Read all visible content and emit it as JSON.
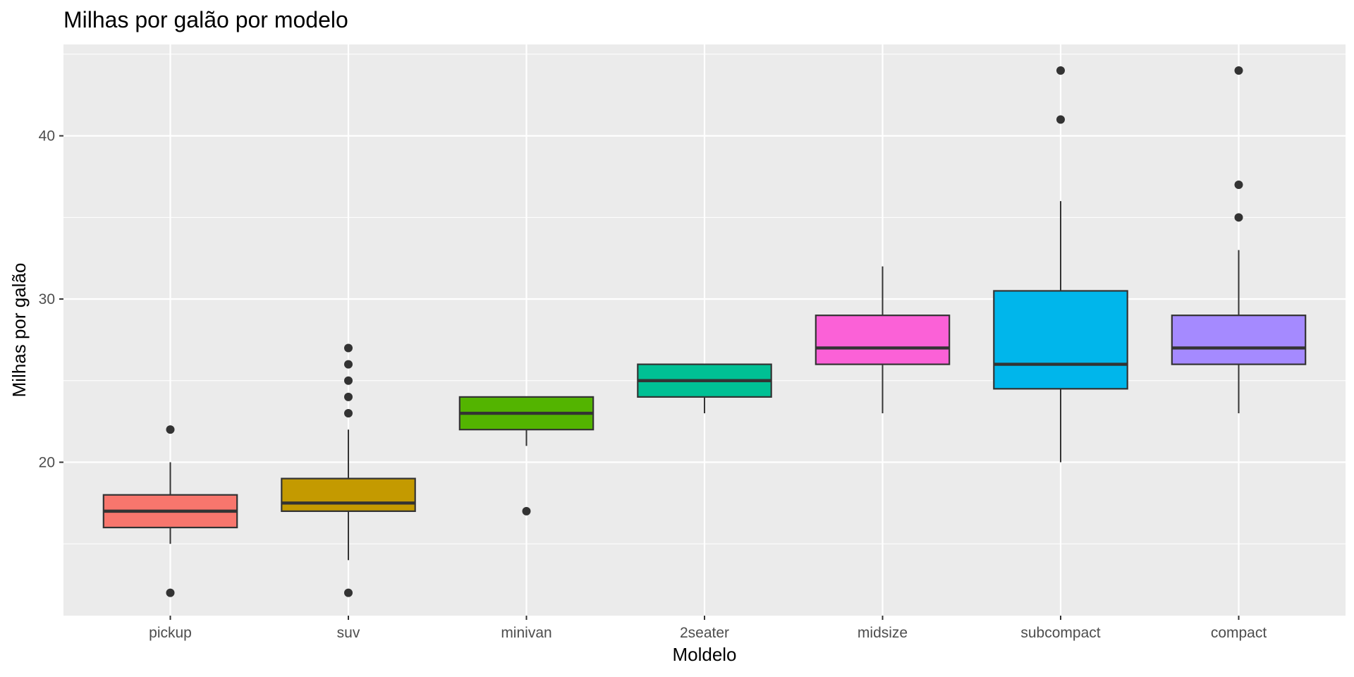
{
  "chart_data": {
    "type": "boxplot",
    "title": "Milhas por galão por modelo",
    "xlabel": "Moldelo",
    "ylabel": "Milhas por galão",
    "ylim": [
      10.6,
      45.6
    ],
    "yticks": [
      20,
      30,
      40
    ],
    "grid": true,
    "legend": "none",
    "categories": [
      "pickup",
      "suv",
      "minivan",
      "2seater",
      "midsize",
      "subcompact",
      "compact"
    ],
    "boxes": [
      {
        "category": "pickup",
        "color": "#F8766D",
        "lower_whisker": 15,
        "q1": 16,
        "median": 17,
        "q3": 18,
        "upper_whisker": 20,
        "outliers": [
          12,
          22
        ]
      },
      {
        "category": "suv",
        "color": "#C49A00",
        "lower_whisker": 14,
        "q1": 17,
        "median": 17.5,
        "q3": 19,
        "upper_whisker": 22,
        "outliers": [
          12,
          23,
          24,
          25,
          26,
          27
        ]
      },
      {
        "category": "minivan",
        "color": "#53B400",
        "lower_whisker": 21,
        "q1": 22,
        "median": 23,
        "q3": 24,
        "upper_whisker": 24,
        "outliers": [
          17
        ]
      },
      {
        "category": "2seater",
        "color": "#00C094",
        "lower_whisker": 23,
        "q1": 24,
        "median": 25,
        "q3": 26,
        "upper_whisker": 26,
        "outliers": []
      },
      {
        "category": "midsize",
        "color": "#FB61D7",
        "lower_whisker": 23,
        "q1": 26,
        "median": 27,
        "q3": 29,
        "upper_whisker": 32,
        "outliers": []
      },
      {
        "category": "subcompact",
        "color": "#00B6EB",
        "lower_whisker": 20,
        "q1": 24.5,
        "median": 26,
        "q3": 30.5,
        "upper_whisker": 36,
        "outliers": [
          41,
          44
        ]
      },
      {
        "category": "compact",
        "color": "#A58AFF",
        "lower_whisker": 23,
        "q1": 26,
        "median": 27,
        "q3": 29,
        "upper_whisker": 33,
        "outliers": [
          35,
          37,
          44
        ]
      }
    ],
    "colors": {
      "panel_background": "#EBEBEB",
      "grid": "#FFFFFF",
      "box_outline": "#333333",
      "outlier": "#333333"
    }
  }
}
